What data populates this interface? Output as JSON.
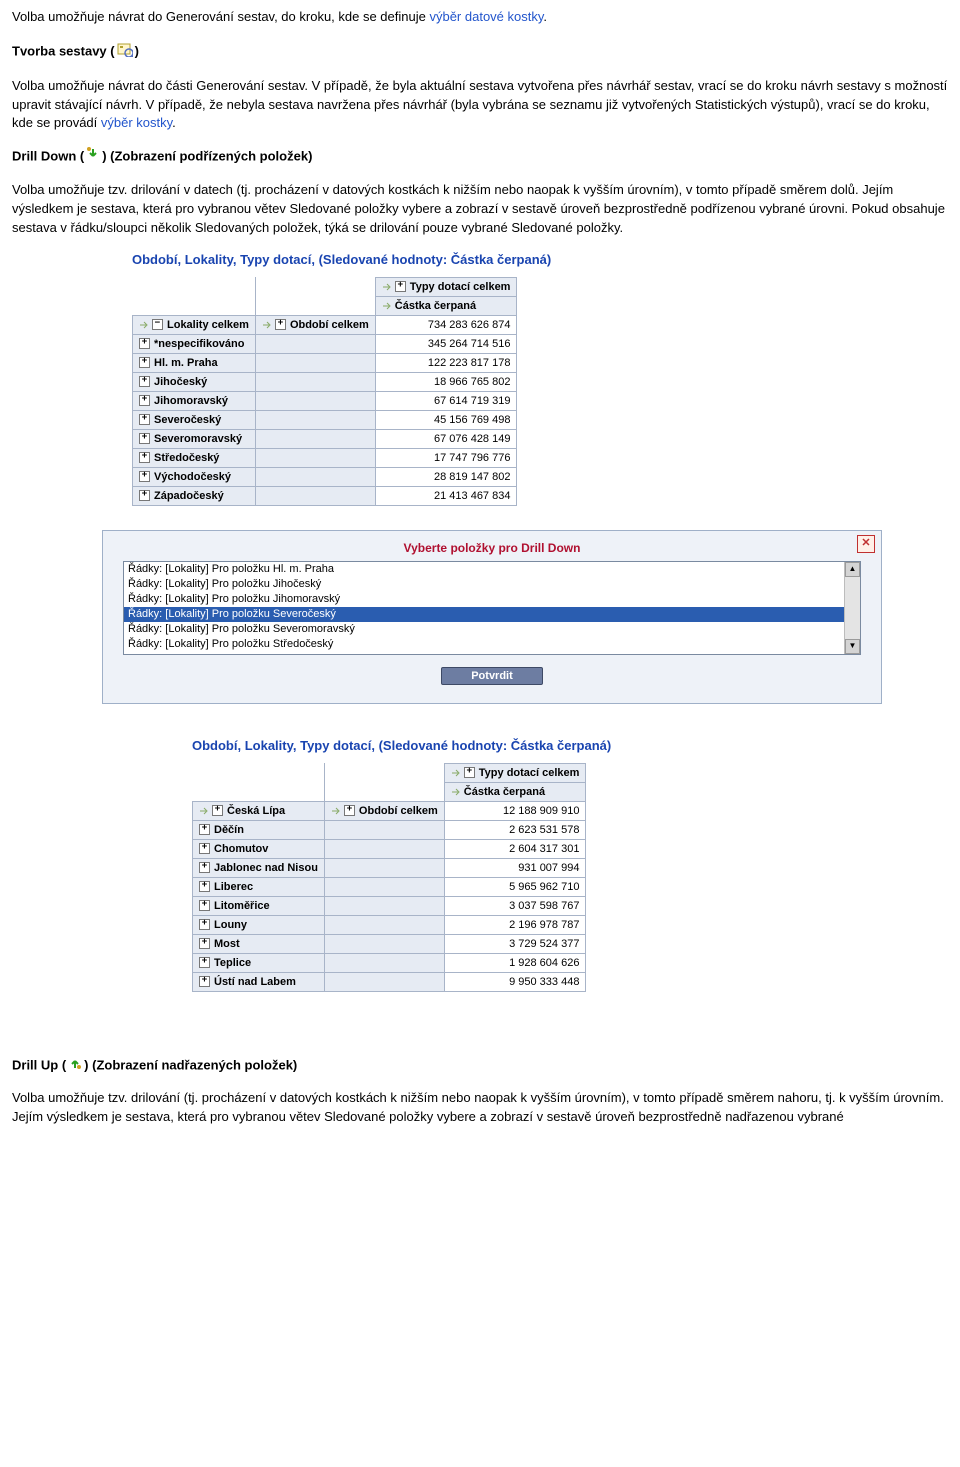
{
  "para1_prefix": "Volba umožňuje návrat do Generování sestav, do kroku, kde se definuje ",
  "para1_link": "výběr datové kostky",
  "para1_suffix": ".",
  "heading_tvorba": "Tvorba sestavy (",
  "heading_tvorba_end": ")",
  "para2_a": "Volba umožňuje návrat do části Generování sestav. V případě, že byla aktuální sestava vytvořena přes návrhář sestav, vrací se do kroku návrh sestavy s možností upravit stávající návrh. V případě, že nebyla sestava navržena přes návrhář (byla vybrána se seznamu již vytvořených Statistických výstupů), vrací se do kroku, kde se provádí ",
  "para2_link": "výběr kostky",
  "para2_suffix": ".",
  "heading_drilldown_a": "Drill Down (",
  "heading_drilldown_b": ") (Zobrazení podřízených položek)",
  "para3": "Volba umožňuje tzv. drilování v datech (tj. procházení v datových kostkách k nižším nebo naopak k vyšším úrovním), v tomto případě směrem dolů. Jejím výsledkem je sestava, která pro vybranou větev Sledované položky vybere a zobrazí v sestavě úroveň bezprostředně podřízenou vybrané úrovni. Pokud obsahuje sestava v řádku/sloupci několik Sledovaných položek, týká se drilování pouze vybrané Sledované položky.",
  "report1": {
    "title": "Období, Lokality, Typy dotací, (Sledované hodnoty: Částka čerpaná)",
    "col_header_top": "Typy dotací celkem",
    "col_header_sub": "Částka čerpaná",
    "row_axis_label": "Lokality celkem",
    "obdobi": "Období celkem",
    "rows": [
      {
        "label": "*nespecifikováno",
        "value": "345 264 714 516",
        "total_for_sum": false
      },
      {
        "label": "Hl. m. Praha",
        "value": "122 223 817 178"
      },
      {
        "label": "Jihočeský",
        "value": "18 966 765 802"
      },
      {
        "label": "Jihomoravský",
        "value": "67 614 719 319"
      },
      {
        "label": "Severočeský",
        "value": "45 156 769 498"
      },
      {
        "label": "Severomoravský",
        "value": "67 076 428 149"
      },
      {
        "label": "Středočeský",
        "value": "17 747 796 776"
      },
      {
        "label": "Východočeský",
        "value": "28 819 147 802"
      },
      {
        "label": "Západočeský",
        "value": "21 413 467 834"
      }
    ],
    "grand_total": "734 283 626 874"
  },
  "dialog": {
    "title": "Vyberte položky pro Drill Down",
    "items": [
      {
        "text": "Řádky: [Lokality] Pro položku Hl. m. Praha",
        "selected": false
      },
      {
        "text": "Řádky: [Lokality] Pro položku Jihočeský",
        "selected": false
      },
      {
        "text": "Řádky: [Lokality] Pro položku Jihomoravský",
        "selected": false
      },
      {
        "text": "Řádky: [Lokality] Pro položku Severočeský",
        "selected": true
      },
      {
        "text": "Řádky: [Lokality] Pro položku Severomoravský",
        "selected": false
      },
      {
        "text": "Řádky: [Lokality] Pro položku Středočeský",
        "selected": false
      }
    ],
    "confirm": "Potvrdit"
  },
  "report2": {
    "title": "Období, Lokality, Typy dotací, (Sledované hodnoty: Částka čerpaná)",
    "col_header_top": "Typy dotací celkem",
    "col_header_sub": "Částka čerpaná",
    "obdobi": "Období celkem",
    "rows": [
      {
        "label": "Česká Lípa",
        "value": "12 188 909 910"
      },
      {
        "label": "Děčín",
        "value": "2 623 531 578"
      },
      {
        "label": "Chomutov",
        "value": "2 604 317 301"
      },
      {
        "label": "Jablonec nad Nisou",
        "value": "931 007 994"
      },
      {
        "label": "Liberec",
        "value": "5 965 962 710"
      },
      {
        "label": "Litoměřice",
        "value": "3 037 598 767"
      },
      {
        "label": "Louny",
        "value": "2 196 978 787"
      },
      {
        "label": "Most",
        "value": "3 729 524 377"
      },
      {
        "label": "Teplice",
        "value": "1 928 604 626"
      },
      {
        "label": "Ústí nad Labem",
        "value": "9 950 333 448"
      }
    ]
  },
  "heading_drillup_a": "Drill Up (",
  "heading_drillup_b": ") (Zobrazení nadřazených položek)",
  "para4": "Volba umožňuje tzv. drilování (tj. procházení v datových kostkách k nižším nebo naopak k vyšším úrovním), v tomto případě směrem nahoru, tj. k vyšším úrovním. Jejím výsledkem je sestava, která pro vybranou větev Sledované položky vybere a zobrazí v sestavě úroveň bezprostředně nadřazenou vybrané"
}
